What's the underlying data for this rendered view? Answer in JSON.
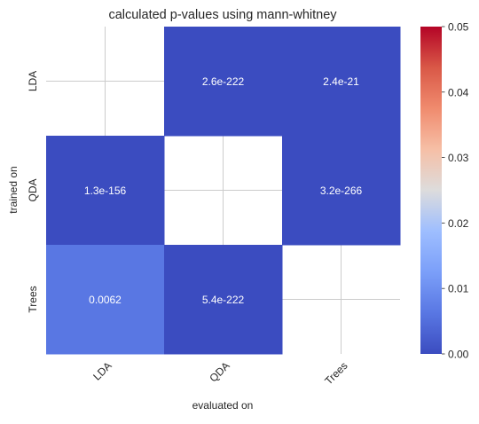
{
  "chart_data": {
    "type": "heatmap",
    "title": "calculated p-values using mann-whitney",
    "xlabel": "evaluated on",
    "ylabel": "trained on",
    "x_categories": [
      "LDA",
      "QDA",
      "Trees"
    ],
    "y_categories": [
      "LDA",
      "QDA",
      "Trees"
    ],
    "values": [
      [
        null,
        2.6e-222,
        2.4e-21
      ],
      [
        1.3e-156,
        null,
        3.2e-266
      ],
      [
        0.0062,
        5.4e-222,
        null
      ]
    ],
    "annotations": [
      [
        null,
        "2.6e-222",
        "2.4e-21"
      ],
      [
        "1.3e-156",
        null,
        "3.2e-266"
      ],
      [
        "0.0062",
        "5.4e-222",
        null
      ]
    ],
    "colorbar": {
      "colormap": "coolwarm",
      "min": 0,
      "max": 0.05,
      "ticks": [
        "0.00",
        "0.01",
        "0.02",
        "0.03",
        "0.04",
        "0.05"
      ],
      "tick_values": [
        0,
        0.01,
        0.02,
        0.03,
        0.04,
        0.05
      ]
    },
    "grid": true,
    "masked_cells": "diagonal"
  }
}
